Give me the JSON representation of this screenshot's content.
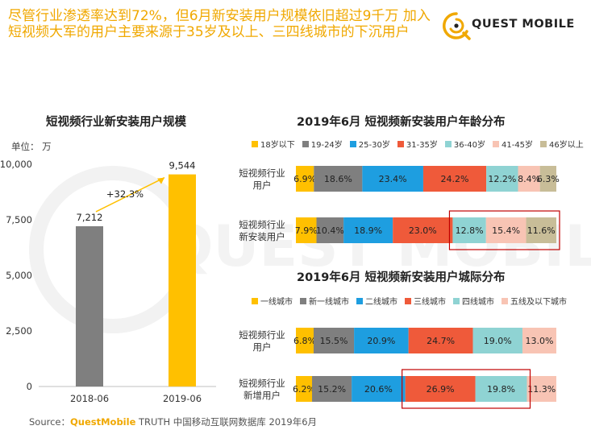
{
  "headline": "尽管行业渗透率达到72%，但6月新安装用户规模依旧超过9千万 加入短视频大军的用户主要来源于35岁及以上、三四线城市的下沉用户",
  "brand": {
    "logo_text": "QUEST MOBILE",
    "watermark_text": "QUEST MOBILE"
  },
  "colors": {
    "yellow": "#ffc000",
    "gray": "#7f7f7f",
    "blue": "#1e9ee0",
    "red": "#ef5a3a",
    "teal": "#8fd3d3",
    "pink": "#f8c4b4",
    "khaki": "#c8bd98",
    "brand_orange": "#f0a800"
  },
  "footer": {
    "source_label": "Source：",
    "source_brand": "QuestMobile",
    "source_text": " TRUTH 中国移动互联网数据库 2019年6月"
  },
  "chart_data": [
    {
      "type": "bar",
      "title": "短视频行业新安装用户规模",
      "unit_label": "单位：  万",
      "categories": [
        "2018-06",
        "2019-06"
      ],
      "values": [
        7212,
        9544
      ],
      "value_labels": [
        "7,212",
        "9,544"
      ],
      "bar_colors": [
        "#7f7f7f",
        "#ffc000"
      ],
      "ylim": [
        0,
        10000
      ],
      "yticks": [
        0,
        2500,
        5000,
        7500,
        10000
      ],
      "ytick_labels": [
        "0",
        "2,500",
        "5,000",
        "7,500",
        "10,000"
      ],
      "annotation": "+32.3%"
    },
    {
      "type": "bar",
      "orientation": "horizontal-stacked-100",
      "title": "2019年6月 短视频新安装用户年龄分布",
      "categories": [
        "短视频行业\n用户",
        "短视频行业\n新安装用户"
      ],
      "series": [
        {
          "name": "18岁以下",
          "color": "#ffc000",
          "values": [
            6.9,
            7.9
          ]
        },
        {
          "name": "19-24岁",
          "color": "#7f7f7f",
          "values": [
            18.6,
            10.4
          ]
        },
        {
          "name": "25-30岁",
          "color": "#1e9ee0",
          "values": [
            23.4,
            18.9
          ]
        },
        {
          "name": "31-35岁",
          "color": "#ef5a3a",
          "values": [
            24.2,
            23.0
          ]
        },
        {
          "name": "36-40岁",
          "color": "#8fd3d3",
          "values": [
            12.2,
            12.8
          ]
        },
        {
          "name": "41-45岁",
          "color": "#f8c4b4",
          "values": [
            8.4,
            15.4
          ]
        },
        {
          "name": "46岁以上",
          "color": "#c8bd98",
          "values": [
            6.3,
            11.6
          ]
        }
      ],
      "highlight_series": [
        4,
        6
      ]
    },
    {
      "type": "bar",
      "orientation": "horizontal-stacked-100",
      "title": "2019年6月 短视频新安装用户城际分布",
      "categories": [
        "短视频行业\n用户",
        "短视频行业\n新增用户"
      ],
      "series": [
        {
          "name": "一线城市",
          "color": "#ffc000",
          "values": [
            6.8,
            6.2
          ]
        },
        {
          "name": "新一线城市",
          "color": "#7f7f7f",
          "values": [
            15.5,
            15.2
          ]
        },
        {
          "name": "二线城市",
          "color": "#1e9ee0",
          "values": [
            20.9,
            20.6
          ]
        },
        {
          "name": "三线城市",
          "color": "#ef5a3a",
          "values": [
            24.7,
            26.9
          ]
        },
        {
          "name": "四线城市",
          "color": "#8fd3d3",
          "values": [
            19.0,
            19.8
          ]
        },
        {
          "name": "五线及以下城市",
          "color": "#f8c4b4",
          "values": [
            13.0,
            11.3
          ]
        }
      ],
      "highlight_series": [
        3,
        4
      ]
    }
  ]
}
